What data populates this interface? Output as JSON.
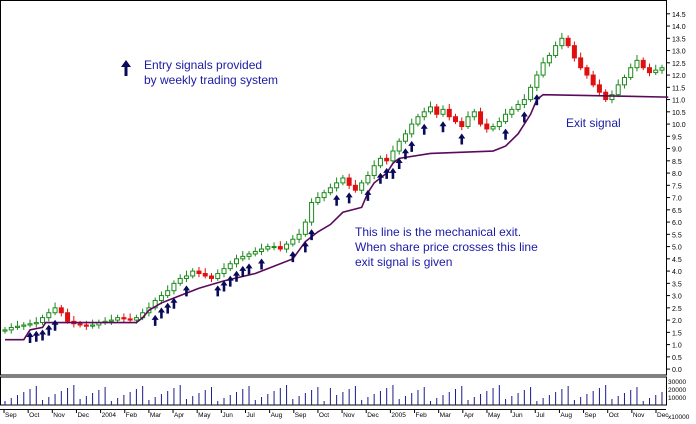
{
  "chart_data": {
    "type": "candlestick",
    "x_tick_labels": [
      "Sep",
      "Oct",
      "Nov",
      "Dec",
      "2004",
      "Feb",
      "Mar",
      "Apr",
      "May",
      "Jun",
      "Jul",
      "Aug",
      "Sep",
      "Oct",
      "Nov",
      "Dec",
      "2005",
      "Feb",
      "Mar",
      "Apr",
      "May",
      "Jun",
      "Jul",
      "Aug",
      "Sep",
      "Oct",
      "Nov",
      "Dec"
    ],
    "y_ticks": [
      0.0,
      0.5,
      1.0,
      1.5,
      2.0,
      2.5,
      3.0,
      3.5,
      4.0,
      4.5,
      5.0,
      5.5,
      6.0,
      6.5,
      7.0,
      7.5,
      8.0,
      8.5,
      9.0,
      9.5,
      10.0,
      10.5,
      11.0,
      11.5,
      12.0,
      12.5,
      13.0,
      13.5,
      14.0,
      14.5
    ],
    "ylim": [
      -0.2,
      14.9
    ],
    "volume_ticks": [
      "30000",
      "20000",
      "10000",
      "x10000"
    ],
    "weekly_close": [
      1.6,
      1.7,
      1.75,
      1.8,
      1.85,
      1.9,
      2.1,
      2.3,
      2.5,
      2.3,
      1.95,
      1.85,
      1.8,
      1.75,
      1.8,
      1.9,
      1.95,
      2.0,
      2.1,
      2.05,
      2.0,
      2.1,
      2.3,
      2.5,
      2.8,
      3.0,
      3.2,
      3.5,
      3.7,
      3.8,
      4.0,
      3.9,
      3.8,
      3.7,
      3.9,
      4.1,
      4.3,
      4.5,
      4.6,
      4.7,
      4.8,
      4.9,
      5.0,
      5.0,
      4.9,
      5.1,
      5.3,
      5.5,
      6.0,
      6.8,
      7.0,
      7.2,
      7.4,
      7.6,
      7.8,
      7.5,
      7.3,
      7.6,
      7.9,
      8.3,
      8.6,
      8.5,
      8.9,
      9.3,
      9.6,
      10.0,
      10.3,
      10.5,
      10.7,
      10.4,
      10.6,
      10.3,
      10.1,
      9.9,
      10.3,
      10.5,
      10.0,
      9.8,
      9.9,
      10.1,
      10.4,
      10.6,
      10.8,
      11.0,
      11.5,
      12.0,
      12.5,
      12.8,
      13.2,
      13.5,
      13.2,
      12.7,
      12.3,
      12.0,
      11.6,
      11.3,
      11.0,
      11.2,
      11.6,
      11.9,
      12.3,
      12.6,
      12.3,
      12.1,
      12.2,
      12.3
    ],
    "exit_line_points": [
      [
        0,
        1.2
      ],
      [
        3,
        1.2
      ],
      [
        4,
        1.6
      ],
      [
        6,
        1.7
      ],
      [
        6.5,
        1.9
      ],
      [
        21,
        1.9
      ],
      [
        22,
        2.1
      ],
      [
        23,
        2.4
      ],
      [
        25,
        2.7
      ],
      [
        27,
        2.9
      ],
      [
        31,
        3.3
      ],
      [
        35,
        3.6
      ],
      [
        40,
        3.9
      ],
      [
        42,
        4.1
      ],
      [
        46,
        4.5
      ],
      [
        48,
        5.2
      ],
      [
        50,
        5.6
      ],
      [
        52,
        5.9
      ],
      [
        54,
        6.4
      ],
      [
        57,
        6.6
      ],
      [
        58,
        7.2
      ],
      [
        59,
        7.6
      ],
      [
        61,
        8.0
      ],
      [
        62,
        8.4
      ],
      [
        63,
        8.6
      ],
      [
        68,
        8.8
      ],
      [
        78,
        8.9
      ],
      [
        80,
        9.1
      ],
      [
        82,
        9.6
      ],
      [
        84,
        10.4
      ],
      [
        85,
        11.0
      ],
      [
        86,
        11.2
      ],
      [
        106,
        11.1
      ]
    ],
    "entry_signal_weeks": [
      4,
      5,
      6,
      7,
      8,
      24,
      25,
      26,
      27,
      29,
      34,
      35,
      36,
      37,
      38,
      39,
      41,
      46,
      48,
      49,
      53,
      55,
      58,
      60,
      61,
      62,
      63,
      64,
      65,
      67,
      70,
      73,
      80,
      83,
      85
    ],
    "annotations": {
      "entry_legend": [
        "Entry signals provided",
        "by weekly trading system"
      ],
      "exit_line": [
        "This line is the mechanical exit.",
        "When share price crosses this line",
        "exit signal is given"
      ],
      "exit_signal": "Exit signal"
    },
    "colors": {
      "up": "#1a8a1a",
      "down": "#e01010",
      "exit_line": "#5a0a5a",
      "arrow": "#0a0a5a",
      "annotation": "#1a1aa6",
      "volume": "#1a1a8a"
    },
    "grid": false
  }
}
